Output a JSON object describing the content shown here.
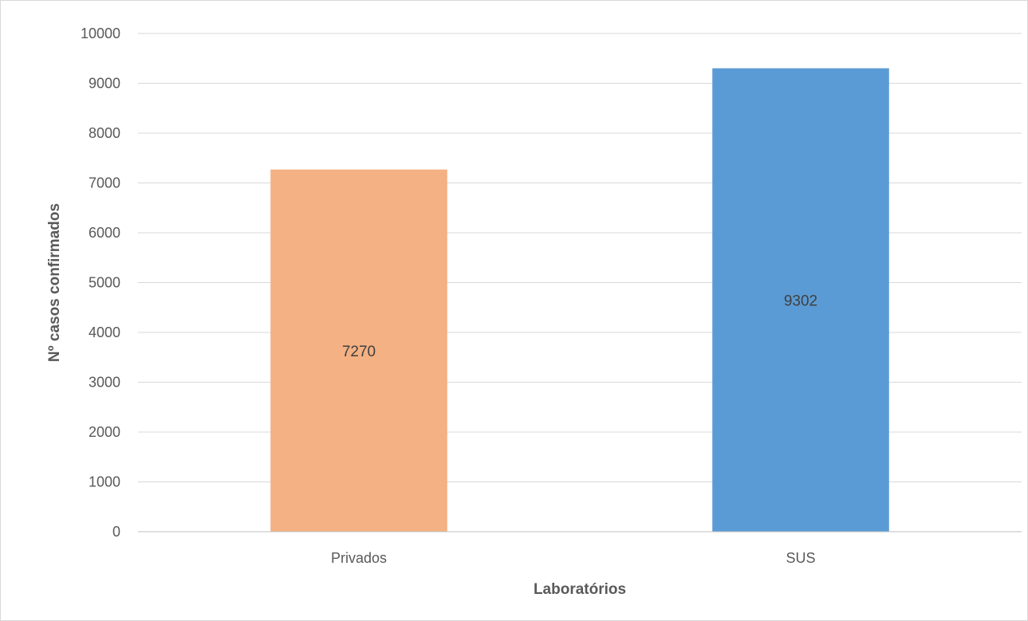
{
  "chart_data": {
    "type": "bar",
    "categories": [
      "Privados",
      "SUS"
    ],
    "values": [
      7270,
      9302
    ],
    "data_labels": [
      "7270",
      "9302"
    ],
    "bar_colors": [
      "#F4B183",
      "#5B9BD5"
    ],
    "xlabel": "Laboratórios",
    "ylabel": "Nº casos confirmados",
    "ylim": [
      0,
      10000
    ],
    "yticks": [
      0,
      1000,
      2000,
      3000,
      4000,
      5000,
      6000,
      7000,
      8000,
      9000,
      10000
    ],
    "ytick_labels": [
      "0",
      "1000",
      "2000",
      "3000",
      "4000",
      "5000",
      "6000",
      "7000",
      "8000",
      "9000",
      "10000"
    ],
    "grid": true,
    "legend": false
  }
}
